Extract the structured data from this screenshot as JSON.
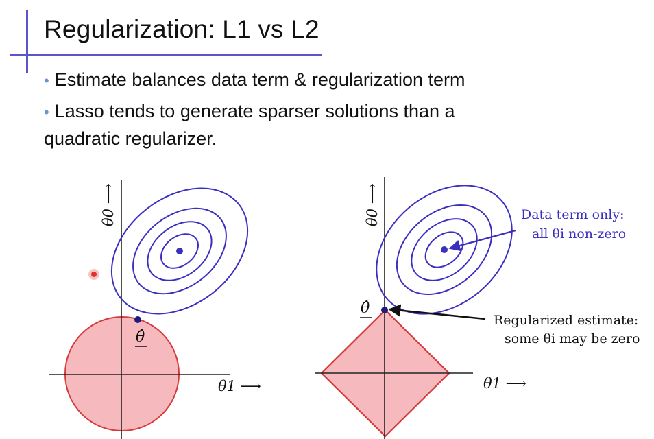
{
  "slide": {
    "title": "Regularization: L1 vs L2",
    "bullets": [
      {
        "text": "Estimate balances data term & regularization term"
      },
      {
        "text": "Lasso tends to generate sparser solutions than a",
        "text2": "quadratic regularizer."
      }
    ]
  },
  "left_plot": {
    "y_axis_label": "θ0 ⟶",
    "x_axis_label": "θ1 ⟶",
    "estimate_label": "θ̂"
  },
  "right_plot": {
    "y_axis_label": "θ0 ⟶",
    "x_axis_label": "θ1 ⟶",
    "estimate_label": "θ̂",
    "annotation_data_line1": "Data term only:",
    "annotation_data_line2": "all θi non-zero",
    "annotation_reg_line1": "Regularized estimate:",
    "annotation_reg_line2": "some θi may be zero"
  },
  "colors": {
    "contour": "#3b2fc0",
    "region_fill": "#f6b9be",
    "region_stroke": "#d63a3a",
    "accent_bar": "#5b55c8",
    "bullet_dot": "#6f8fd8",
    "cursor": "#e03030"
  }
}
